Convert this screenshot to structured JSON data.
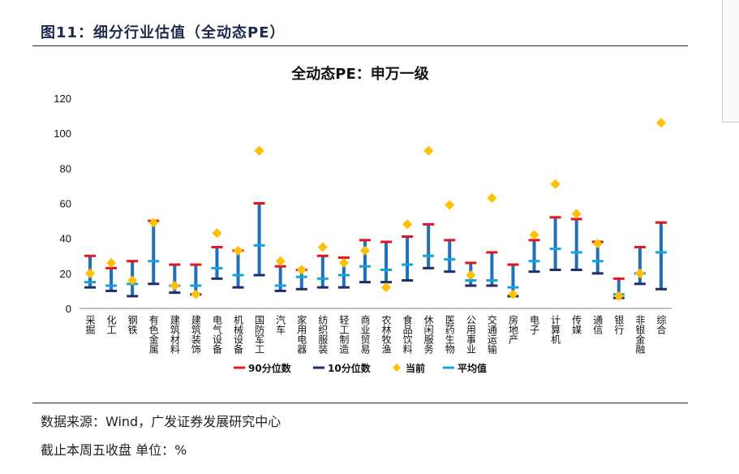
{
  "figure": {
    "title": "图11：细分行业估值（全动态PE）",
    "source": "数据来源：Wind，广发证券发展研究中心",
    "note": "截止本周五收盘 单位：%"
  },
  "chart_data": {
    "type": "range-bar",
    "title": "全动态PE：申万一级",
    "ylim": [
      0,
      120
    ],
    "yticks": [
      0,
      20,
      40,
      60,
      80,
      100,
      120
    ],
    "grid": false,
    "legend_position": "bottom",
    "categories": [
      "采掘",
      "化工",
      "钢铁",
      "有色金属",
      "建筑材料",
      "建筑装饰",
      "电气设备",
      "机械设备",
      "国防军工",
      "汽车",
      "家用电器",
      "纺织服装",
      "轻工制造",
      "商业贸易",
      "农林牧渔",
      "食品饮料",
      "休闲服务",
      "医药生物",
      "公用事业",
      "交通运输",
      "房地产",
      "电子",
      "计算机",
      "传媒",
      "通信",
      "银行",
      "非银金融",
      "综合"
    ],
    "series": [
      {
        "name": "90分位数",
        "color": "#e8131c",
        "values": [
          30,
          23,
          27,
          50,
          25,
          25,
          35,
          33,
          60,
          24,
          22,
          30,
          29,
          39,
          38,
          41,
          48,
          39,
          26,
          32,
          25,
          39,
          52,
          51,
          38,
          17,
          35,
          49
        ]
      },
      {
        "name": "10分位数",
        "color": "#1f2d6b",
        "values": [
          12,
          10,
          7,
          14,
          9,
          8,
          17,
          12,
          19,
          10,
          11,
          12,
          12,
          15,
          15,
          16,
          23,
          21,
          13,
          13,
          7,
          21,
          22,
          22,
          20,
          6,
          14,
          11
        ]
      },
      {
        "name": "当前",
        "color": "#ffc000",
        "values": [
          20,
          26,
          16,
          49,
          13,
          8,
          43,
          33,
          90,
          27,
          22,
          35,
          26,
          33,
          12,
          48,
          90,
          59,
          19,
          63,
          8,
          42,
          71,
          54,
          37,
          7,
          20,
          106
        ]
      },
      {
        "name": "平均值",
        "color": "#14a3dc",
        "values": [
          15,
          13,
          14,
          27,
          13,
          13,
          23,
          19,
          36,
          13,
          18,
          17,
          19,
          24,
          22,
          25,
          30,
          28,
          16,
          16,
          12,
          27,
          34,
          32,
          27,
          8,
          20,
          32
        ]
      }
    ],
    "bar_color": "#1f70b8"
  }
}
